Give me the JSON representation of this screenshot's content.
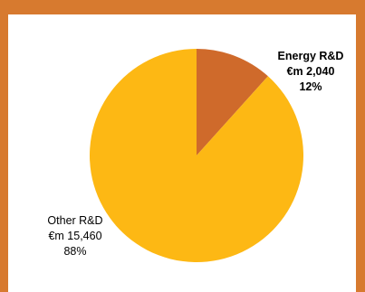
{
  "chart_data": {
    "type": "pie",
    "title": "",
    "colors": [
      "#CF6A2B",
      "#FDB814"
    ],
    "slices": [
      {
        "label": "Energy R&D",
        "value_text": "€m 2,040",
        "value": 2040,
        "percent": 12,
        "percent_text": "12%",
        "color": "#CF6A2B"
      },
      {
        "label": "Other R&D",
        "value_text": "€m 15,460",
        "value": 15460,
        "percent": 88,
        "percent_text": "88%",
        "color": "#FDB814"
      }
    ]
  },
  "frame": {
    "border_color": "#D77A2F"
  }
}
